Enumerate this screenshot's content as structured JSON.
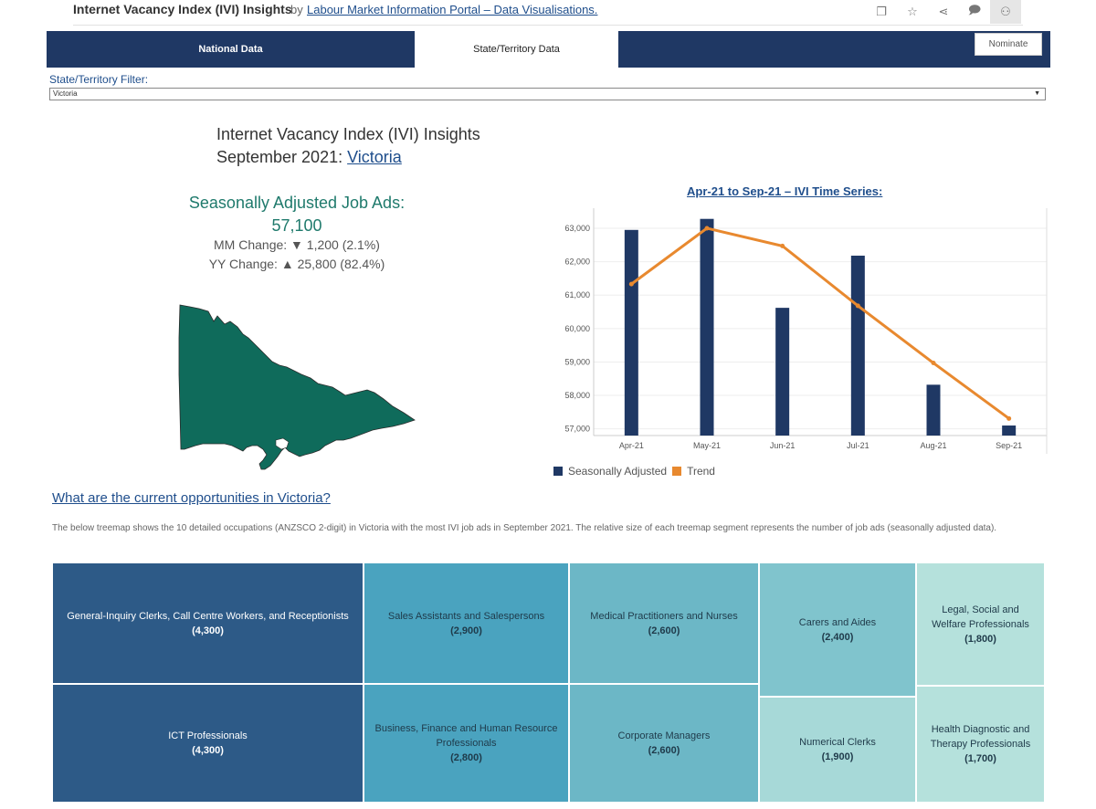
{
  "header": {
    "title": "Internet Vacancy Index (IVI) Insights",
    "by": "by",
    "author": "Labour Market Information Portal – Data Visualisations."
  },
  "tabs": [
    {
      "label": "National Data"
    },
    {
      "label": "State/Territory Data"
    }
  ],
  "nominate_label": "Nominate",
  "filter": {
    "label": "State/Territory Filter:",
    "value": "Victoria"
  },
  "title": {
    "line1": "Internet Vacancy Index (IVI) Insights",
    "line2_prefix": "September 2021:",
    "place": "Victoria"
  },
  "summary": {
    "label": "Seasonally Adjusted Job Ads:",
    "value": "57,100",
    "mm_change": "MM Change: ▼ 1,200 (2.1%)",
    "yy_change": "YY Change: ▲ 25,800 (82.4%)"
  },
  "opportunities": {
    "title": "What are the current opportunities in Victoria?",
    "description": "The below treemap shows the 10 detailed occupations (ANZSCO 2-digit) in Victoria with the most IVI job ads in September 2021. The relative size of each treemap segment represents the number of job ads (seasonally adjusted data)."
  },
  "colors": {
    "navy": "#1f3864",
    "bar": "#1f3864",
    "trend": "#e8892f",
    "map": "#0f6b5b"
  },
  "chart_data": {
    "type": "bar",
    "title": "Apr-21 to Sep-21 – IVI Time Series:",
    "categories": [
      "Apr-21",
      "May-21",
      "Jun-21",
      "Jul-21",
      "Aug-21",
      "Sep-21"
    ],
    "series": [
      {
        "name": "Seasonally Adjusted",
        "type": "bar",
        "values": [
          62950,
          63280,
          60620,
          62180,
          58320,
          57100
        ]
      },
      {
        "name": "Trend",
        "type": "line",
        "values": [
          61330,
          63000,
          62470,
          60680,
          58970,
          57310
        ]
      }
    ],
    "ylim": [
      56800,
      63600
    ],
    "yticks": [
      "57,000",
      "58,000",
      "59,000",
      "60,000",
      "61,000",
      "62,000",
      "63,000"
    ],
    "ytick_values": [
      57000,
      58000,
      59000,
      60000,
      61000,
      62000,
      63000
    ],
    "grid": true,
    "legend": "bottom-left"
  },
  "treemap": [
    {
      "label": "General-Inquiry Clerks, Call Centre Workers, and Receptionists",
      "count": "(4,300)",
      "color": "#2d5a87",
      "text": "#ffffff"
    },
    {
      "label": "ICT Professionals",
      "count": "(4,300)",
      "color": "#2d5a87",
      "text": "#ffffff"
    },
    {
      "label": "Sales Assistants and Salespersons",
      "count": "(2,900)",
      "color": "#4aa3bf",
      "text": "#1f3a4a"
    },
    {
      "label": "Business, Finance and Human Resource Professionals",
      "count": "(2,800)",
      "color": "#4aa3bf",
      "text": "#1f3a4a"
    },
    {
      "label": "Medical Practitioners and Nurses",
      "count": "(2,600)",
      "color": "#6cb7c6",
      "text": "#1f3a4a"
    },
    {
      "label": "Corporate Managers",
      "count": "(2,600)",
      "color": "#6cb7c6",
      "text": "#1f3a4a"
    },
    {
      "label": "Carers and Aides",
      "count": "(2,400)",
      "color": "#80c4cd",
      "text": "#1f3a4a"
    },
    {
      "label": "Numerical Clerks",
      "count": "(1,900)",
      "color": "#a7d9d8",
      "text": "#1f3a4a"
    },
    {
      "label": "Legal, Social and Welfare Professionals",
      "count": "(1,800)",
      "color": "#b5e1dc",
      "text": "#1f3a4a"
    },
    {
      "label": "Health Diagnostic and Therapy Professionals",
      "count": "(1,700)",
      "color": "#b5e1dc",
      "text": "#1f3a4a"
    }
  ]
}
